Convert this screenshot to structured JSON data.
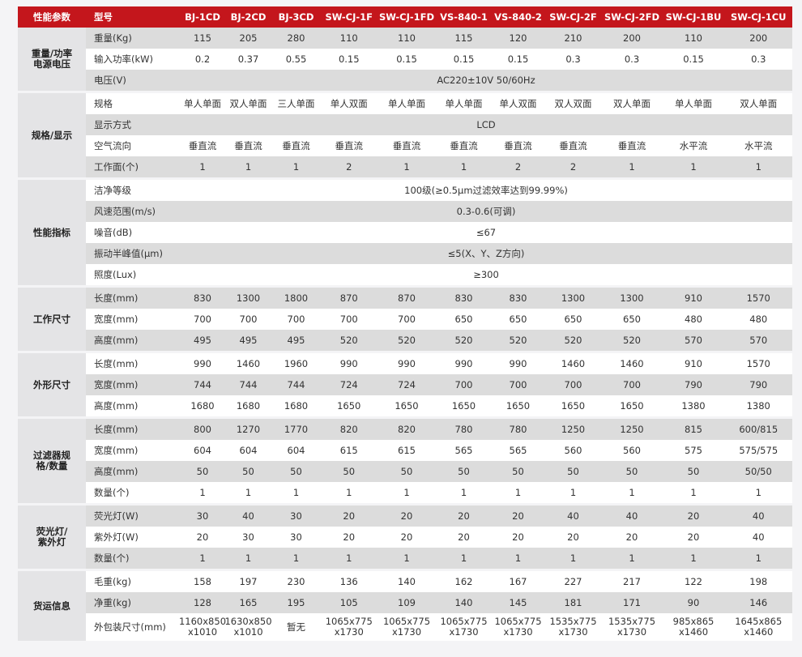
{
  "header": {
    "group_label": "性能参数",
    "model_label": "型号",
    "models": [
      "BJ-1CD",
      "BJ-2CD",
      "BJ-3CD",
      "SW-CJ-1F",
      "SW-CJ-1FD",
      "VS-840-1",
      "VS-840-2",
      "SW-CJ-2F",
      "SW-CJ-2FD",
      "SW-CJ-1BU",
      "SW-CJ-1CU"
    ]
  },
  "groups": [
    {
      "label": "重量/功率\n电源电压",
      "rows": [
        {
          "label": "重量(Kg)",
          "values": [
            "115",
            "205",
            "280",
            "110",
            "110",
            "115",
            "120",
            "210",
            "200",
            "110",
            "200"
          ]
        },
        {
          "label": "输入功率(kW)",
          "values": [
            "0.2",
            "0.37",
            "0.55",
            "0.15",
            "0.15",
            "0.15",
            "0.15",
            "0.3",
            "0.3",
            "0.15",
            "0.3"
          ]
        },
        {
          "label": "电压(V)",
          "value": "AC220±10V 50/60Hz"
        }
      ]
    },
    {
      "label": "规格/显示",
      "rows": [
        {
          "label": "规格",
          "values": [
            "单人单面",
            "双人单面",
            "三人单面",
            "单人双面",
            "单人单面",
            "单人单面",
            "单人双面",
            "双人双面",
            "双人单面",
            "单人单面",
            "双人单面"
          ]
        },
        {
          "label": "显示方式",
          "value": "LCD"
        },
        {
          "label": "空气流向",
          "values": [
            "垂直流",
            "垂直流",
            "垂直流",
            "垂直流",
            "垂直流",
            "垂直流",
            "垂直流",
            "垂直流",
            "垂直流",
            "水平流",
            "水平流"
          ]
        },
        {
          "label": "工作面(个)",
          "values": [
            "1",
            "1",
            "1",
            "2",
            "1",
            "1",
            "2",
            "2",
            "1",
            "1",
            "1"
          ]
        }
      ]
    },
    {
      "label": "性能指标",
      "rows": [
        {
          "label": "洁净等级",
          "value": "100级(≥0.5μm过滤效率达到99.99%)"
        },
        {
          "label": "风速范围(m/s)",
          "value": "0.3-0.6(可调)"
        },
        {
          "label": "噪音(dB)",
          "value": "≤67"
        },
        {
          "label": "振动半峰值(μm)",
          "value": "≤5(X、Y、Z方向)"
        },
        {
          "label": "照度(Lux)",
          "value": "≥300"
        }
      ]
    },
    {
      "label": "工作尺寸",
      "rows": [
        {
          "label": "长度(mm)",
          "values": [
            "830",
            "1300",
            "1800",
            "870",
            "870",
            "830",
            "830",
            "1300",
            "1300",
            "910",
            "1570"
          ]
        },
        {
          "label": "宽度(mm)",
          "values": [
            "700",
            "700",
            "700",
            "700",
            "700",
            "650",
            "650",
            "650",
            "650",
            "480",
            "480"
          ]
        },
        {
          "label": "高度(mm)",
          "values": [
            "495",
            "495",
            "495",
            "520",
            "520",
            "520",
            "520",
            "520",
            "520",
            "570",
            "570"
          ]
        }
      ]
    },
    {
      "label": "外形尺寸",
      "rows": [
        {
          "label": "长度(mm)",
          "values": [
            "990",
            "1460",
            "1960",
            "990",
            "990",
            "990",
            "990",
            "1460",
            "1460",
            "910",
            "1570"
          ]
        },
        {
          "label": "宽度(mm)",
          "values": [
            "744",
            "744",
            "744",
            "724",
            "724",
            "700",
            "700",
            "700",
            "700",
            "790",
            "790"
          ]
        },
        {
          "label": "高度(mm)",
          "values": [
            "1680",
            "1680",
            "1680",
            "1650",
            "1650",
            "1650",
            "1650",
            "1650",
            "1650",
            "1380",
            "1380"
          ]
        }
      ]
    },
    {
      "label": "过滤器规\n格/数量",
      "rows": [
        {
          "label": "长度(mm)",
          "values": [
            "800",
            "1270",
            "1770",
            "820",
            "820",
            "780",
            "780",
            "1250",
            "1250",
            "815",
            "600/815"
          ]
        },
        {
          "label": "宽度(mm)",
          "values": [
            "604",
            "604",
            "604",
            "615",
            "615",
            "565",
            "565",
            "560",
            "560",
            "575",
            "575/575"
          ]
        },
        {
          "label": "高度(mm)",
          "values": [
            "50",
            "50",
            "50",
            "50",
            "50",
            "50",
            "50",
            "50",
            "50",
            "50",
            "50/50"
          ]
        },
        {
          "label": "数量(个)",
          "values": [
            "1",
            "1",
            "1",
            "1",
            "1",
            "1",
            "1",
            "1",
            "1",
            "1",
            "1"
          ]
        }
      ]
    },
    {
      "label": "荧光灯/\n紫外灯",
      "rows": [
        {
          "label": "荧光灯(W)",
          "values": [
            "30",
            "40",
            "30",
            "20",
            "20",
            "20",
            "20",
            "40",
            "40",
            "20",
            "40"
          ]
        },
        {
          "label": "紫外灯(W)",
          "values": [
            "20",
            "30",
            "30",
            "20",
            "20",
            "20",
            "20",
            "20",
            "20",
            "20",
            "40"
          ]
        },
        {
          "label": "数量(个)",
          "values": [
            "1",
            "1",
            "1",
            "1",
            "1",
            "1",
            "1",
            "1",
            "1",
            "1",
            "1"
          ]
        }
      ]
    },
    {
      "label": "货运信息",
      "rows": [
        {
          "label": "毛重(kg)",
          "values": [
            "158",
            "197",
            "230",
            "136",
            "140",
            "162",
            "167",
            "227",
            "217",
            "122",
            "198"
          ]
        },
        {
          "label": "净重(kg)",
          "values": [
            "128",
            "165",
            "195",
            "105",
            "109",
            "140",
            "145",
            "181",
            "171",
            "90",
            "146"
          ]
        },
        {
          "label": "外包装尺寸(mm)",
          "values": [
            "1160x850\nx1010",
            "1630x850\nx1010",
            "暂无",
            "1065x775\nx1730",
            "1065x775\nx1730",
            "1065x775\nx1730",
            "1065x775\nx1730",
            "1535x775\nx1730",
            "1535x775\nx1730",
            "985x865\nx1460",
            "1645x865\nx1460"
          ]
        }
      ]
    }
  ]
}
